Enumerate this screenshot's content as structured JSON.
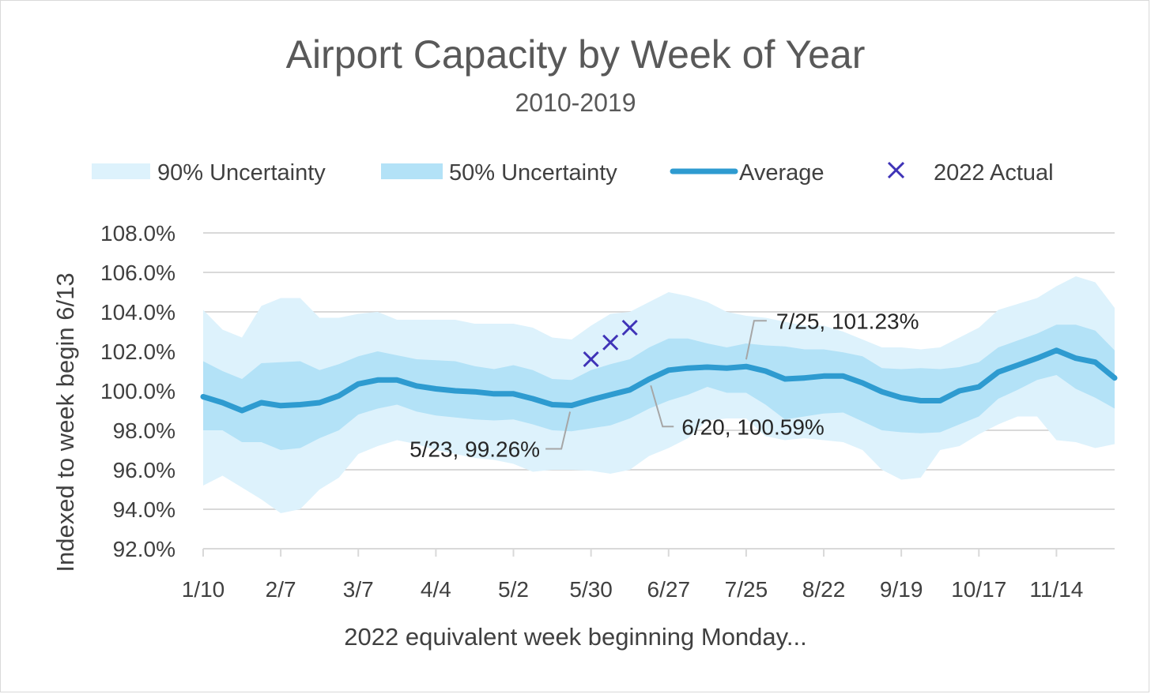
{
  "chart_data": {
    "type": "line",
    "title": "Airport Capacity by Week of Year",
    "subtitle": "2010-2019",
    "xlabel": "2022 equivalent week beginning Monday...",
    "ylabel": "Indexed to week begin 6/13",
    "ylim": [
      92.0,
      108.0
    ],
    "y_ticks": [
      "92.0%",
      "94.0%",
      "96.0%",
      "98.0%",
      "100.0%",
      "102.0%",
      "104.0%",
      "106.0%",
      "108.0%"
    ],
    "y_tick_values": [
      92,
      94,
      96,
      98,
      100,
      102,
      104,
      106,
      108
    ],
    "x_tick_labels": [
      "1/10",
      "2/7",
      "3/7",
      "4/4",
      "5/2",
      "5/30",
      "6/27",
      "7/25",
      "8/22",
      "9/19",
      "10/17",
      "11/14"
    ],
    "x_tick_weeks": [
      0,
      4,
      8,
      12,
      16,
      20,
      24,
      28,
      32,
      36,
      40,
      44
    ],
    "weeks": 48,
    "grid": true,
    "legend_position": "top",
    "legend": [
      "90% Uncertainty",
      "50% Uncertainty",
      "Average",
      "2022 Actual"
    ],
    "colors": {
      "band90": "#ddf2fc",
      "band50": "#b3e2f7",
      "average": "#2e9bd0",
      "actual": "#3f33b7",
      "grid": "#d9d9d9",
      "leader": "#a6a6a6"
    },
    "series": [
      {
        "name": "Average",
        "values": [
          99.7,
          99.4,
          99.0,
          99.4,
          99.25,
          99.3,
          99.4,
          99.75,
          100.35,
          100.55,
          100.55,
          100.25,
          100.1,
          100.0,
          99.95,
          99.85,
          99.85,
          99.6,
          99.3,
          99.26,
          99.55,
          99.8,
          100.05,
          100.59,
          101.05,
          101.15,
          101.2,
          101.15,
          101.23,
          101.0,
          100.6,
          100.65,
          100.75,
          100.75,
          100.4,
          99.95,
          99.65,
          99.5,
          99.5,
          100.0,
          100.2,
          100.95,
          101.3,
          101.65,
          102.05,
          101.65,
          101.45,
          100.65
        ]
      },
      {
        "name": "50% Uncertainty",
        "lower": [
          98.0,
          98.0,
          97.4,
          97.4,
          97.0,
          97.1,
          97.6,
          98.0,
          98.8,
          99.1,
          99.3,
          98.95,
          98.75,
          98.65,
          98.55,
          98.5,
          98.55,
          98.3,
          98.0,
          97.95,
          98.1,
          98.25,
          98.6,
          99.1,
          99.5,
          99.8,
          100.2,
          99.9,
          99.9,
          99.3,
          98.55,
          98.7,
          98.85,
          98.9,
          98.45,
          98.0,
          97.9,
          97.85,
          97.9,
          98.3,
          98.7,
          99.6,
          100.05,
          100.55,
          100.8,
          100.1,
          99.65,
          99.1
        ],
        "upper": [
          101.5,
          101.0,
          100.6,
          101.4,
          101.45,
          101.5,
          101.05,
          101.35,
          101.75,
          102.0,
          101.8,
          101.6,
          101.55,
          101.5,
          101.25,
          101.1,
          101.3,
          101.05,
          100.6,
          100.55,
          101.05,
          101.35,
          101.6,
          102.2,
          102.65,
          102.65,
          102.4,
          102.2,
          102.4,
          102.3,
          102.25,
          102.1,
          102.1,
          101.95,
          101.75,
          101.15,
          101.1,
          101.15,
          101.1,
          101.2,
          101.45,
          102.2,
          102.55,
          102.9,
          103.35,
          103.35,
          103.05,
          102.05
        ]
      },
      {
        "name": "90% Uncertainty",
        "lower": [
          95.2,
          95.7,
          95.1,
          94.5,
          93.8,
          94.0,
          95.0,
          95.6,
          96.8,
          97.2,
          97.5,
          97.3,
          97.0,
          96.8,
          96.6,
          96.5,
          96.3,
          95.9,
          96.0,
          96.0,
          95.95,
          95.8,
          96.0,
          96.7,
          97.1,
          97.6,
          98.5,
          98.6,
          98.6,
          97.7,
          97.5,
          97.6,
          97.5,
          97.4,
          97.0,
          96.0,
          95.5,
          95.6,
          97.0,
          97.2,
          97.8,
          98.3,
          98.7,
          98.7,
          97.5,
          97.4,
          97.1,
          97.3
        ],
        "upper": [
          104.1,
          103.1,
          102.7,
          104.3,
          104.7,
          104.7,
          103.7,
          103.7,
          103.9,
          104.0,
          103.6,
          103.6,
          103.6,
          103.6,
          103.4,
          103.4,
          103.4,
          103.2,
          102.7,
          102.6,
          103.3,
          103.9,
          104.0,
          104.5,
          105.0,
          104.8,
          104.5,
          104.0,
          103.8,
          103.7,
          103.5,
          103.3,
          103.3,
          103.0,
          102.6,
          102.2,
          102.2,
          102.1,
          102.2,
          102.7,
          103.2,
          104.1,
          104.4,
          104.7,
          105.3,
          105.8,
          105.5,
          104.2
        ]
      },
      {
        "name": "2022 Actual",
        "points": [
          {
            "week": 20,
            "value": 101.6
          },
          {
            "week": 21,
            "value": 102.45
          },
          {
            "week": 22,
            "value": 103.2
          }
        ]
      }
    ],
    "annotations": [
      {
        "label": "5/23, 99.26%",
        "week": 19,
        "value": 99.26,
        "side": "below-left"
      },
      {
        "label": "6/20, 100.59%",
        "week": 23,
        "value": 100.59,
        "side": "below-right"
      },
      {
        "label": "7/25, 101.23%",
        "week": 28,
        "value": 101.23,
        "side": "above-right"
      }
    ]
  }
}
